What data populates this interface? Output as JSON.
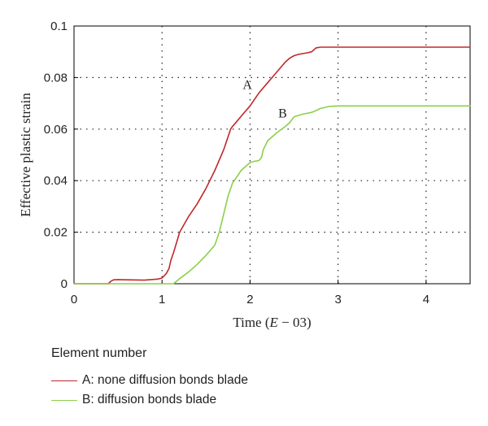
{
  "chart_data": {
    "type": "line",
    "title": "",
    "xlabel_prefix": "Time (",
    "xlabel_var": "E",
    "xlabel_suffix": " − 03)",
    "ylabel": "Effective plastic strain",
    "xlim": [
      0,
      4.5
    ],
    "ylim": [
      0,
      0.1
    ],
    "x_ticks": [
      0,
      1,
      2,
      3,
      4
    ],
    "x_tick_labels": [
      "0",
      "1",
      "2",
      "3",
      "4"
    ],
    "y_ticks": [
      0,
      0.02,
      0.04,
      0.06,
      0.08,
      0.1
    ],
    "y_tick_labels": [
      "0",
      "0.02",
      "0.04",
      "0.06",
      "0.08",
      "0.1"
    ],
    "grid": true,
    "legend_position": "below",
    "legend_title": "Element number",
    "series": [
      {
        "name": "A: none diffusion bonds blade",
        "marker": "A",
        "color": "#c0282a",
        "x": [
          0,
          0.39,
          0.42,
          0.45,
          0.5,
          0.6,
          0.8,
          0.95,
          1.0,
          1.05,
          1.08,
          1.1,
          1.13,
          1.2,
          1.3,
          1.4,
          1.5,
          1.6,
          1.7,
          1.78,
          1.8,
          1.85,
          1.9,
          2.0,
          2.1,
          2.2,
          2.3,
          2.4,
          2.45,
          2.5,
          2.55,
          2.6,
          2.65,
          2.7,
          2.75,
          2.8,
          3.0,
          3.5,
          4.0,
          4.5
        ],
        "y": [
          0,
          0,
          0.001,
          0.0015,
          0.0016,
          0.0015,
          0.0014,
          0.0018,
          0.0022,
          0.004,
          0.006,
          0.009,
          0.012,
          0.02,
          0.026,
          0.031,
          0.037,
          0.044,
          0.052,
          0.06,
          0.061,
          0.063,
          0.065,
          0.069,
          0.074,
          0.078,
          0.082,
          0.086,
          0.0875,
          0.0885,
          0.089,
          0.0893,
          0.0896,
          0.09,
          0.0915,
          0.0918,
          0.0918,
          0.0918,
          0.0918,
          0.0918
        ],
        "label_at": [
          1.97,
          0.0755
        ]
      },
      {
        "name": "B: diffusion bonds blade",
        "marker": "B",
        "color": "#8ccf4a",
        "x": [
          0,
          1.13,
          1.2,
          1.3,
          1.4,
          1.5,
          1.6,
          1.65,
          1.7,
          1.75,
          1.8,
          1.9,
          2.0,
          2.05,
          2.1,
          2.13,
          2.15,
          2.2,
          2.3,
          2.4,
          2.45,
          2.5,
          2.6,
          2.7,
          2.75,
          2.8,
          2.9,
          3.0,
          3.5,
          4.0,
          4.5
        ],
        "y": [
          0,
          0,
          0.002,
          0.0045,
          0.0075,
          0.011,
          0.015,
          0.02,
          0.027,
          0.034,
          0.039,
          0.044,
          0.047,
          0.0475,
          0.0478,
          0.049,
          0.052,
          0.0555,
          0.0585,
          0.061,
          0.0625,
          0.0648,
          0.0658,
          0.0665,
          0.0672,
          0.068,
          0.0688,
          0.069,
          0.069,
          0.069,
          0.069
        ],
        "label_at": [
          2.37,
          0.0645
        ]
      }
    ]
  }
}
